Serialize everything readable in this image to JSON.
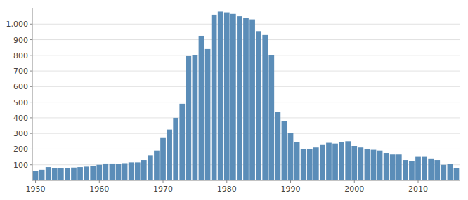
{
  "chart_data": {
    "type": "bar",
    "x": [
      1950,
      1951,
      1952,
      1953,
      1954,
      1955,
      1956,
      1957,
      1958,
      1959,
      1960,
      1961,
      1962,
      1963,
      1964,
      1965,
      1966,
      1967,
      1968,
      1969,
      1970,
      1971,
      1972,
      1973,
      1974,
      1975,
      1976,
      1977,
      1978,
      1979,
      1980,
      1981,
      1982,
      1983,
      1984,
      1985,
      1986,
      1987,
      1988,
      1989,
      1990,
      1991,
      1992,
      1993,
      1994,
      1995,
      1996,
      1997,
      1998,
      1999,
      2000,
      2001,
      2002,
      2003,
      2004,
      2005,
      2006,
      2007,
      2008,
      2009,
      2010,
      2011,
      2012,
      2013,
      2014,
      2015,
      2016
    ],
    "values": [
      60,
      68,
      85,
      80,
      80,
      80,
      82,
      85,
      88,
      90,
      100,
      108,
      108,
      105,
      110,
      115,
      115,
      130,
      160,
      190,
      275,
      325,
      400,
      490,
      795,
      800,
      925,
      840,
      1060,
      1080,
      1075,
      1065,
      1050,
      1040,
      1030,
      955,
      930,
      800,
      440,
      380,
      305,
      245,
      200,
      200,
      210,
      230,
      240,
      235,
      245,
      250,
      220,
      210,
      200,
      195,
      190,
      175,
      165,
      165,
      130,
      125,
      150,
      150,
      140,
      130,
      100,
      105,
      80
    ],
    "color": "#5b8db8",
    "xlim": [
      1949.5,
      2016.5
    ],
    "xticks": [
      1950,
      1960,
      1970,
      1980,
      1990,
      2000,
      2010
    ],
    "ylim": [
      0,
      1100
    ],
    "yticks": [
      100,
      200,
      300,
      400,
      500,
      600,
      700,
      800,
      900,
      {
        "value": 1000,
        "label": "1,000"
      }
    ],
    "grid": true
  }
}
